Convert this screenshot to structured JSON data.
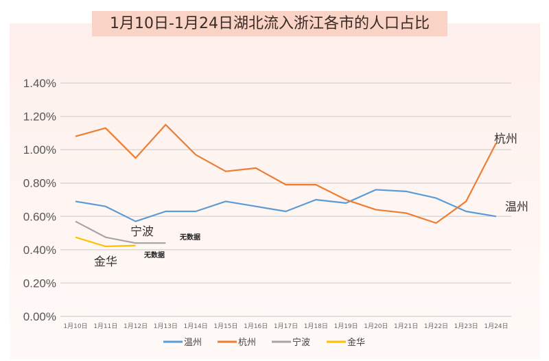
{
  "chart_data": {
    "type": "line",
    "title": "1月10日-1月24日湖北流入浙江各市的人口占比",
    "categories": [
      "1月10日",
      "1月11日",
      "1月12日",
      "1月13日",
      "1月14日",
      "1月15日",
      "1月16日",
      "1月17日",
      "1月18日",
      "1月19日",
      "1月20日",
      "1月21日",
      "1月22日",
      "1月23日",
      "1月24日"
    ],
    "ylim": [
      0,
      1.4
    ],
    "yticks": [
      "0.00%",
      "0.20%",
      "0.40%",
      "0.60%",
      "0.80%",
      "1.00%",
      "1.20%",
      "1.40%"
    ],
    "grid": true,
    "legend_position": "bottom",
    "series": [
      {
        "name": "温州",
        "color": "#5b9bd5",
        "values": [
          0.69,
          0.66,
          0.57,
          0.63,
          0.63,
          0.69,
          0.66,
          0.63,
          0.7,
          0.68,
          0.76,
          0.75,
          0.71,
          0.63,
          0.6
        ],
        "label": "温州"
      },
      {
        "name": "杭州",
        "color": "#ed7d31",
        "values": [
          1.08,
          1.13,
          0.95,
          1.15,
          0.97,
          0.87,
          0.89,
          0.79,
          0.79,
          0.7,
          0.64,
          0.62,
          0.56,
          0.69,
          1.04
        ],
        "label": "杭州"
      },
      {
        "name": "宁波",
        "color": "#a5a5a5",
        "values": [
          0.57,
          0.475,
          0.44,
          0.44,
          null,
          null,
          null,
          null,
          null,
          null,
          null,
          null,
          null,
          null,
          null
        ],
        "label": "宁波",
        "note": "无数据"
      },
      {
        "name": "金华",
        "color": "#ffc000",
        "values": [
          0.475,
          0.42,
          0.425,
          null,
          null,
          null,
          null,
          null,
          null,
          null,
          null,
          null,
          null,
          null,
          null
        ],
        "label": "金华",
        "note": "无数据"
      }
    ]
  }
}
